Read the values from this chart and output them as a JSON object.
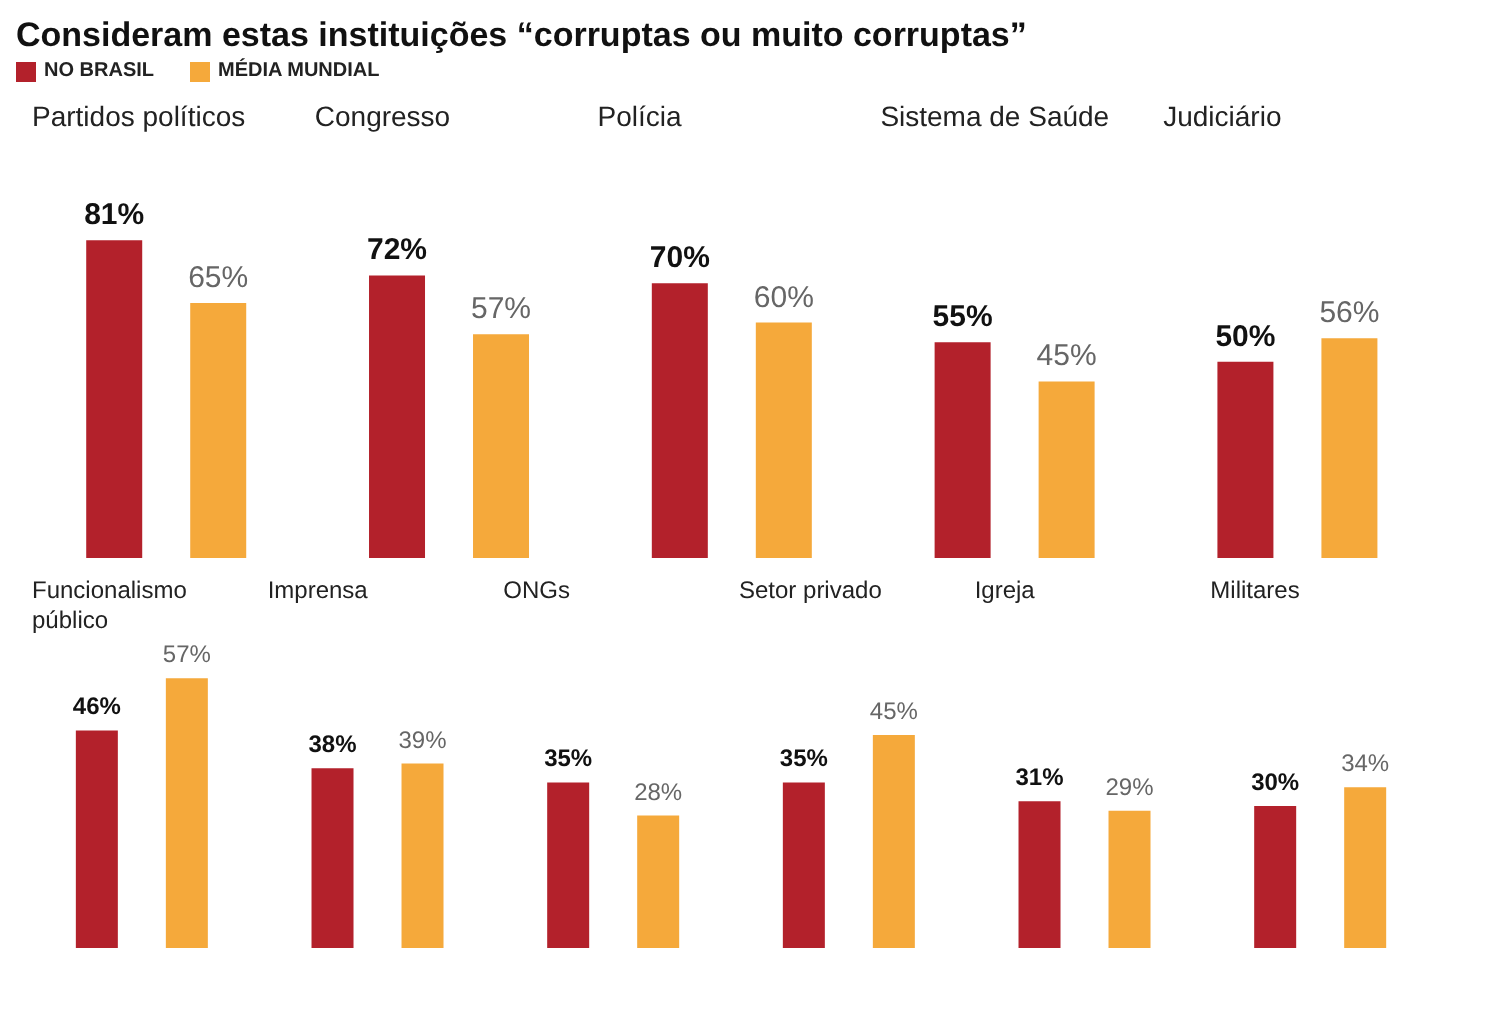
{
  "chart_data": [
    {
      "type": "bar",
      "title": "Consideram estas instituições “corruptas ou muito corruptas”",
      "legend": "top left",
      "categories": [
        "Partidos políticos",
        "Congresso",
        "Polícia",
        "Sistema de Saúde",
        "Judiciário"
      ],
      "series": [
        {
          "name": "NO BRASIL",
          "color": "#b3212b",
          "values": [
            81,
            72,
            70,
            55,
            50
          ],
          "value_labels": [
            "81%",
            "72%",
            "70%",
            "55%",
            "50%"
          ]
        },
        {
          "name": "MÉDIA MUNDIAL",
          "color": "#f5a93b",
          "values": [
            65,
            57,
            60,
            45,
            56
          ],
          "value_labels": [
            "65%",
            "57%",
            "60%",
            "45%",
            "56%"
          ]
        }
      ]
    },
    {
      "type": "bar",
      "categories": [
        "Funcionalismo público",
        "Imprensa",
        "ONGs",
        "Setor privado",
        "Igreja",
        "Militares"
      ],
      "series": [
        {
          "color": "#b3212b",
          "values": [
            46,
            38,
            35,
            35,
            31,
            30
          ],
          "value_labels": [
            "46%",
            "38%",
            "35%",
            "35%",
            "31%",
            "30%"
          ]
        },
        {
          "color": "#f5a93b",
          "values": [
            57,
            39,
            28,
            45,
            29,
            34
          ],
          "value_labels": [
            "57%",
            "39%",
            "28%",
            "45%",
            "29%",
            "34%"
          ]
        }
      ]
    }
  ]
}
